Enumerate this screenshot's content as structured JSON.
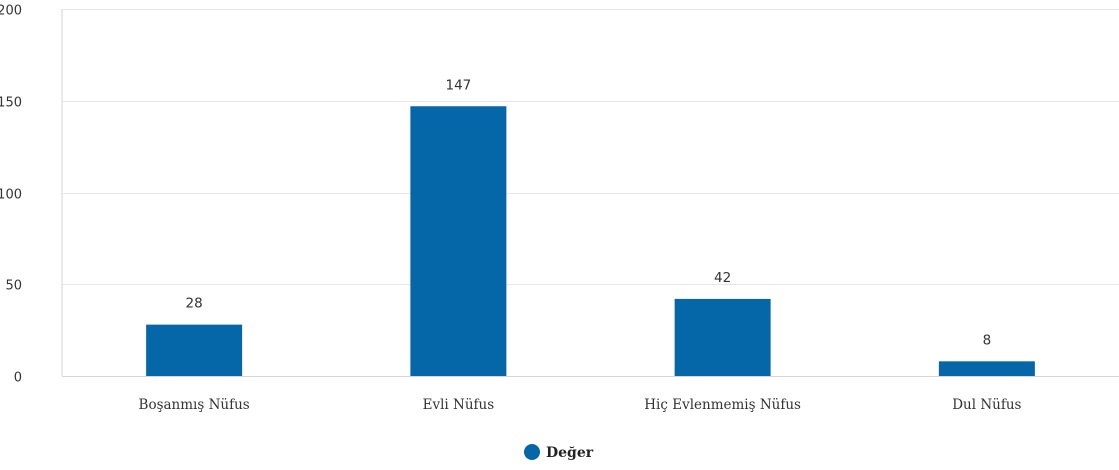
{
  "chart_data": {
    "type": "bar",
    "categories": [
      "Boşanmış Nüfus",
      "Evli Nüfus",
      "Hiç Evlenmemiş Nüfus",
      "Dul Nüfus"
    ],
    "series": [
      {
        "name": "Değer",
        "values": [
          28,
          147,
          42,
          8
        ],
        "color": "#0567a8"
      }
    ],
    "data_labels": [
      "28",
      "147",
      "42",
      "8"
    ],
    "y_ticks": [
      "0",
      "50",
      "100",
      "150",
      "200"
    ],
    "ylim": [
      0,
      200
    ],
    "grid": true,
    "legend_position": "bottom-center"
  },
  "colors": {
    "bar": "#0567a8",
    "grid": "#e6e6e6",
    "axis": "#d6d6d6"
  }
}
